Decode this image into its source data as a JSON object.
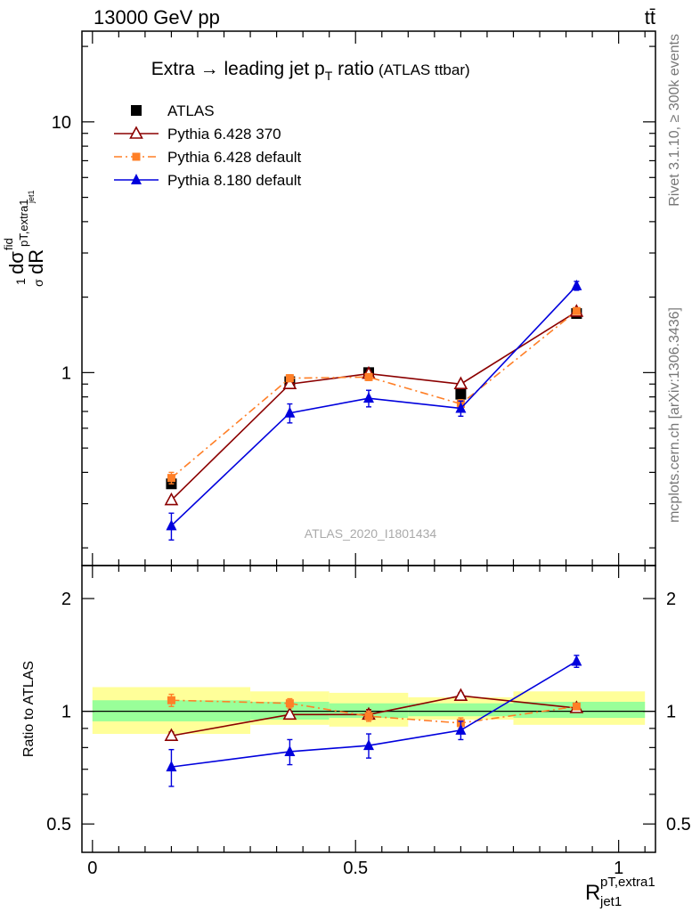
{
  "header": {
    "energy_label": "13000 GeV pp",
    "process_label": "tt̄"
  },
  "side_labels": {
    "rivet": "Rivet 3.1.10, ≥ 300k events",
    "mcplots": "mcplots.cern.ch [arXiv:1306.3436]"
  },
  "colors": {
    "atlas": "#000000",
    "py6_370": "#8b0000",
    "py6_default": "#ff7f27",
    "py8_default": "#0000dd",
    "band_inner": "#99ff99",
    "band_outer": "#ffff99"
  },
  "chart_data": [
    {
      "type": "line",
      "title": "Extra → leading jet p_T ratio",
      "subtitle": "(ATLAS ttbar)",
      "watermark": "ATLAS_2020_I1801434",
      "ylabel": "1/σ dσ^fid / dR^pT,extra1_jet1",
      "xlabel": "R^pT,extra1_jet1",
      "yscale": "log",
      "ylim": [
        0.17,
        23
      ],
      "xlim": [
        -0.02,
        1.07
      ],
      "yticks": [
        1,
        10
      ],
      "ytick_labels": [
        "1",
        "10"
      ],
      "legend_position": "top-left",
      "series": [
        {
          "name": "ATLAS",
          "marker": "square-filled",
          "style": "points",
          "x": [
            0.15,
            0.375,
            0.525,
            0.7,
            0.92
          ],
          "y": [
            0.36,
            0.92,
            1.0,
            0.82,
            1.72
          ]
        },
        {
          "name": "Pythia 6.428 370",
          "marker": "triangle-open",
          "style": "solid",
          "x": [
            0.15,
            0.375,
            0.525,
            0.7,
            0.92
          ],
          "y": [
            0.31,
            0.9,
            0.99,
            0.9,
            1.75
          ]
        },
        {
          "name": "Pythia 6.428 default",
          "marker": "square-small",
          "style": "dashdot",
          "x": [
            0.15,
            0.375,
            0.525,
            0.7,
            0.92
          ],
          "y": [
            0.38,
            0.95,
            0.96,
            0.75,
            1.76
          ],
          "err": [
            0.02,
            0.03,
            0.03,
            0.03,
            0.05
          ]
        },
        {
          "name": "Pythia 8.180 default",
          "marker": "triangle-filled",
          "style": "solid",
          "x": [
            0.15,
            0.375,
            0.525,
            0.7,
            0.92
          ],
          "y": [
            0.245,
            0.69,
            0.79,
            0.72,
            2.22
          ],
          "err": [
            0.03,
            0.06,
            0.06,
            0.05,
            0.09
          ]
        }
      ]
    },
    {
      "type": "line",
      "ylabel": "Ratio to ATLAS",
      "xlabel": "R^pT,extra1_jet1",
      "yscale": "log",
      "ylim": [
        0.42,
        2.45
      ],
      "xlim": [
        -0.02,
        1.07
      ],
      "yticks": [
        0.5,
        1,
        2
      ],
      "ytick_labels": [
        "0.5",
        "1",
        "2"
      ],
      "xticks": [
        0,
        0.5,
        1
      ],
      "xtick_labels": [
        "0",
        "0.5",
        "1"
      ],
      "reference_line": 1,
      "bands": [
        {
          "x0": 0.0,
          "x1": 0.3,
          "inner": [
            0.94,
            1.07
          ],
          "outer": [
            0.87,
            1.16
          ]
        },
        {
          "x0": 0.3,
          "x1": 0.45,
          "inner": [
            0.95,
            1.06
          ],
          "outer": [
            0.92,
            1.13
          ]
        },
        {
          "x0": 0.45,
          "x1": 0.6,
          "inner": [
            0.96,
            1.05
          ],
          "outer": [
            0.91,
            1.12
          ]
        },
        {
          "x0": 0.6,
          "x1": 0.8,
          "inner": [
            0.97,
            1.05
          ],
          "outer": [
            0.95,
            1.09
          ]
        },
        {
          "x0": 0.8,
          "x1": 1.05,
          "inner": [
            0.96,
            1.06
          ],
          "outer": [
            0.92,
            1.13
          ]
        }
      ],
      "series": [
        {
          "name": "Pythia 6.428 370",
          "marker": "triangle-open",
          "style": "solid",
          "x": [
            0.15,
            0.375,
            0.525,
            0.7,
            0.92
          ],
          "y": [
            0.86,
            0.98,
            0.98,
            1.1,
            1.02
          ],
          "err": [
            0.02,
            0.02,
            0.03,
            0.02,
            0.02
          ]
        },
        {
          "name": "Pythia 6.428 default",
          "marker": "square-small",
          "style": "dashdot",
          "x": [
            0.15,
            0.375,
            0.525,
            0.7,
            0.92
          ],
          "y": [
            1.07,
            1.05,
            0.97,
            0.93,
            1.03
          ],
          "err": [
            0.04,
            0.03,
            0.03,
            0.03,
            0.02
          ]
        },
        {
          "name": "Pythia 8.180 default",
          "marker": "triangle-filled",
          "style": "solid",
          "x": [
            0.15,
            0.375,
            0.525,
            0.7,
            0.92
          ],
          "y": [
            0.71,
            0.78,
            0.81,
            0.89,
            1.36
          ],
          "err": [
            0.08,
            0.06,
            0.06,
            0.05,
            0.05
          ]
        }
      ]
    }
  ]
}
